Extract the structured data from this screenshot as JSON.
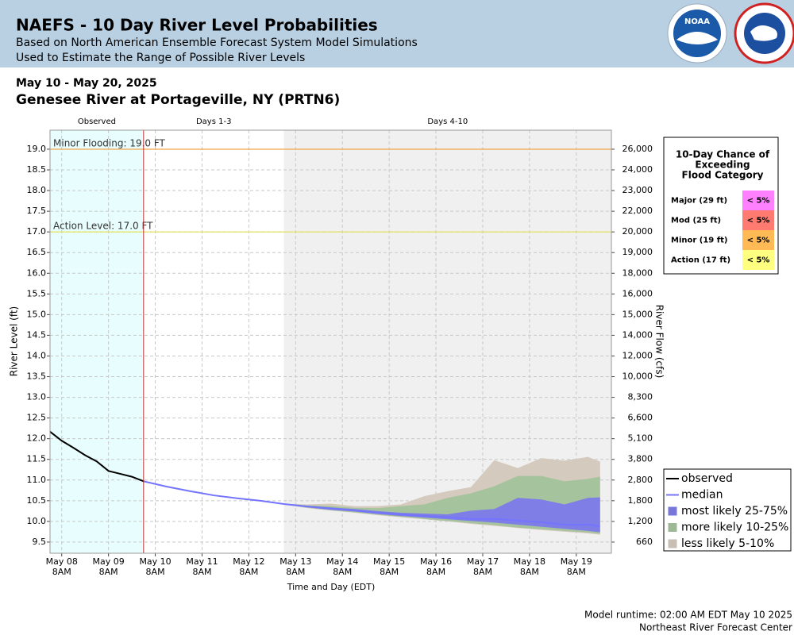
{
  "header": {
    "title": "NAEFS - 10 Day River Level Probabilities",
    "subtitle_1": "Based on North American Ensemble Forecast System Model Simulations",
    "subtitle_2": "Used to Estimate the Range of Possible River Levels",
    "logo": "NOAA"
  },
  "footer": {
    "runtime": "Model runtime: 02:00 AM EDT May 10 2025",
    "center": "Northeast River Forecast Center"
  },
  "chart_data": {
    "type": "line",
    "date_range": "May 10 - May 20, 2025",
    "title": "Genesee River at Portageville, NY (PRTN6)",
    "y_label": "River Level (ft)",
    "y2_label": "River Flow (cfs)",
    "x_label": "Time and Day (EDT)",
    "grid": true,
    "xlim": [
      "2025-05-08T02:00",
      "2025-05-20T02:00"
    ],
    "xticks": [
      {
        "value": "2025-05-08T08:00",
        "label": [
          "May 08",
          "8AM"
        ]
      },
      {
        "value": "2025-05-09T08:00",
        "label": [
          "May 09",
          "8AM"
        ]
      },
      {
        "value": "2025-05-10T08:00",
        "label": [
          "May 10",
          "8AM"
        ]
      },
      {
        "value": "2025-05-11T08:00",
        "label": [
          "May 11",
          "8AM"
        ]
      },
      {
        "value": "2025-05-12T08:00",
        "label": [
          "May 12",
          "8AM"
        ]
      },
      {
        "value": "2025-05-13T08:00",
        "label": [
          "May 13",
          "8AM"
        ]
      },
      {
        "value": "2025-05-14T08:00",
        "label": [
          "May 14",
          "8AM"
        ]
      },
      {
        "value": "2025-05-15T08:00",
        "label": [
          "May 15",
          "8AM"
        ]
      },
      {
        "value": "2025-05-16T08:00",
        "label": [
          "May 16",
          "8AM"
        ]
      },
      {
        "value": "2025-05-17T08:00",
        "label": [
          "May 17",
          "8AM"
        ]
      },
      {
        "value": "2025-05-18T08:00",
        "label": [
          "May 18",
          "8AM"
        ]
      },
      {
        "value": "2025-05-19T08:00",
        "label": [
          "May 19",
          "8AM"
        ]
      }
    ],
    "ylim": [
      9.23,
      19.46
    ],
    "yticks": [
      9.5,
      {
        "value": 10,
        "label": "10.0"
      },
      10.5,
      {
        "value": 11,
        "label": "11.0"
      },
      11.5,
      {
        "value": 12,
        "label": "12.0"
      },
      12.5,
      {
        "value": 13,
        "label": "13.0"
      },
      13.5,
      {
        "value": 14,
        "label": "14.0"
      },
      14.5,
      {
        "value": 15,
        "label": "15.0"
      },
      15.5,
      {
        "value": 16,
        "label": "16.0"
      },
      16.5,
      {
        "value": 17,
        "label": "17.0"
      },
      17.5,
      {
        "value": 18,
        "label": "18.0"
      },
      18.5,
      {
        "value": 19,
        "label": "19.0"
      }
    ],
    "y2ticks": [
      660,
      {
        "value": 1200,
        "label": "1,200"
      },
      {
        "value": 1800,
        "label": "1,800"
      },
      {
        "value": 2800,
        "label": "2,800"
      },
      {
        "value": 3800,
        "label": "3,800"
      },
      {
        "value": 5100,
        "label": "5,100"
      },
      {
        "value": 6600,
        "label": "6,600"
      },
      {
        "value": 8300,
        "label": "8,300"
      },
      {
        "value": 10000,
        "label": "10,000"
      },
      {
        "value": 12000,
        "label": "12,000"
      },
      {
        "value": 14000,
        "label": "14,000"
      },
      {
        "value": 15000,
        "label": "15,000"
      },
      {
        "value": 16000,
        "label": "16,000"
      },
      {
        "value": 18000,
        "label": "18,000"
      },
      {
        "value": 19000,
        "label": "19,000"
      },
      {
        "value": 20000,
        "label": "20,000"
      },
      {
        "value": 22000,
        "label": "22,000"
      },
      {
        "value": 23000,
        "label": "23,000"
      },
      {
        "value": 24000,
        "label": "24,000"
      },
      {
        "value": 26000,
        "label": "26,000"
      }
    ],
    "periods": [
      {
        "name": "Observed",
        "from": "2025-05-08T02:00",
        "to": "2025-05-10T02:00",
        "color": "#e8fefe"
      },
      {
        "name": "Days 1-3",
        "from": "2025-05-10T02:00",
        "to": "2025-05-13T02:00",
        "color": "#ffffff"
      },
      {
        "name": "Days 4-10",
        "from": "2025-05-13T02:00",
        "to": "2025-05-20T02:00",
        "color": "#f0f0f0"
      }
    ],
    "thresholds": [
      {
        "label": "Minor Flooding: 19.0 FT",
        "value": 19,
        "color": "#f0a64a"
      },
      {
        "label": "Action Level: 17.0 FT",
        "value": 17,
        "color": "#e6e04a"
      }
    ],
    "forecast_x": [
      "2025-05-10T02:00",
      "2025-05-10T14:00",
      "2025-05-11T02:00",
      "2025-05-11T14:00",
      "2025-05-12T02:00",
      "2025-05-12T14:00",
      "2025-05-13T02:00",
      "2025-05-13T14:00",
      "2025-05-14T02:00",
      "2025-05-14T14:00",
      "2025-05-15T02:00",
      "2025-05-15T14:00",
      "2025-05-16T02:00",
      "2025-05-16T14:00",
      "2025-05-17T02:00",
      "2025-05-17T14:00",
      "2025-05-18T02:00",
      "2025-05-18T14:00",
      "2025-05-19T02:00",
      "2025-05-19T14:00",
      "2025-05-19T20:00"
    ],
    "series": [
      {
        "name": "observed",
        "color": "#000000",
        "x": [
          "2025-05-08T02:00",
          "2025-05-08T08:00",
          "2025-05-08T14:00",
          "2025-05-08T20:00",
          "2025-05-09T02:00",
          "2025-05-09T08:00",
          "2025-05-09T14:00",
          "2025-05-09T20:00",
          "2025-05-10T02:00"
        ],
        "values": [
          12.17,
          11.95,
          11.78,
          11.6,
          11.45,
          11.22,
          11.15,
          11.08,
          10.97
        ]
      },
      {
        "name": "median",
        "color": "#7474ff",
        "values": [
          10.97,
          10.84,
          10.73,
          10.63,
          10.56,
          10.5,
          10.42,
          10.36,
          10.31,
          10.27,
          10.21,
          10.17,
          10.13,
          10.1,
          10.06,
          10.06,
          10.02,
          9.98,
          9.92,
          9.92,
          9.88
        ]
      },
      {
        "name": "most likely 25-75%",
        "color": "#8c8cff",
        "lower": [
          10.97,
          10.84,
          10.73,
          10.63,
          10.56,
          10.5,
          10.42,
          10.35,
          10.29,
          10.25,
          10.19,
          10.14,
          10.1,
          10.06,
          10.02,
          9.98,
          9.93,
          9.88,
          9.83,
          9.78,
          9.75
        ],
        "upper": [
          10.97,
          10.84,
          10.73,
          10.63,
          10.56,
          10.5,
          10.42,
          10.37,
          10.33,
          10.29,
          10.24,
          10.2,
          10.18,
          10.16,
          10.25,
          10.29,
          10.56,
          10.52,
          10.4,
          10.56,
          10.57
        ]
      },
      {
        "name": "more likely 10-25%",
        "color": "#b7d9ae",
        "lower": [
          10.97,
          10.84,
          10.73,
          10.63,
          10.56,
          10.5,
          10.42,
          10.34,
          10.28,
          10.23,
          10.17,
          10.12,
          10.07,
          10.02,
          9.97,
          9.92,
          9.86,
          9.82,
          9.78,
          9.74,
          9.71
        ],
        "upper": [
          10.97,
          10.84,
          10.73,
          10.63,
          10.56,
          10.5,
          10.42,
          10.38,
          10.36,
          10.32,
          10.31,
          10.36,
          10.4,
          10.56,
          10.67,
          10.84,
          11.09,
          11.09,
          10.96,
          11.02,
          11.07
        ]
      },
      {
        "name": "less likely 5-10%",
        "color": "#ebe0d2",
        "lower": [
          10.97,
          10.84,
          10.73,
          10.63,
          10.56,
          10.5,
          10.42,
          10.33,
          10.27,
          10.22,
          10.16,
          10.11,
          10.06,
          10.01,
          9.95,
          9.9,
          9.85,
          9.8,
          9.76,
          9.72,
          9.69
        ],
        "upper": [
          10.97,
          10.84,
          10.73,
          10.63,
          10.56,
          10.5,
          10.42,
          10.4,
          10.42,
          10.36,
          10.36,
          10.4,
          10.6,
          10.72,
          10.82,
          11.47,
          11.28,
          11.52,
          11.46,
          11.55,
          11.44
        ]
      }
    ],
    "flood_chance": {
      "title": [
        "10-Day Chance of",
        "Exceeding",
        "Flood Category"
      ],
      "rows": [
        {
          "category": "Major (29 ft)",
          "chance": "< 5%",
          "color": "#ff80ff"
        },
        {
          "category": "Mod (25 ft)",
          "chance": "< 5%",
          "color": "#ff7a70"
        },
        {
          "category": "Minor (19 ft)",
          "chance": "< 5%",
          "color": "#ffba55"
        },
        {
          "category": "Action (17 ft)",
          "chance": "< 5%",
          "color": "#ffff80"
        }
      ]
    }
  }
}
